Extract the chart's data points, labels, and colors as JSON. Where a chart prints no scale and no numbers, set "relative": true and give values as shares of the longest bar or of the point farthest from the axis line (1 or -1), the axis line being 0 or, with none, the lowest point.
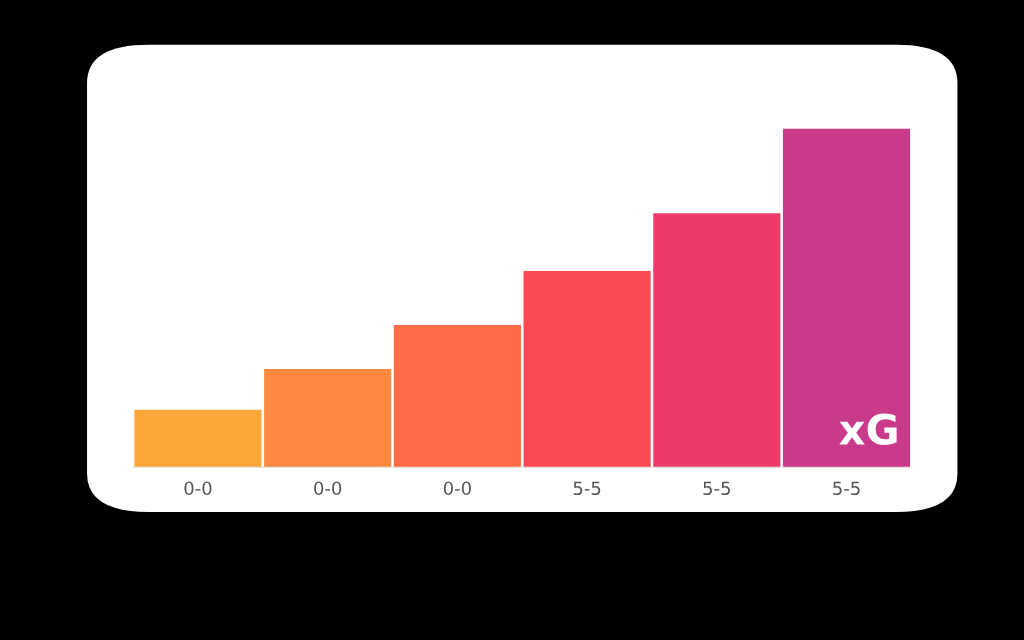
{
  "chart_data": {
    "type": "bar",
    "relative": true,
    "categories": [
      "0-0",
      "0-0",
      "0-0",
      "5-5",
      "5-5",
      "5-5"
    ],
    "values": [
      0.17,
      0.29,
      0.42,
      0.58,
      0.75,
      1
    ],
    "colors": [
      "#fda63a",
      "#fd8a3e",
      "#fd6c46",
      "#fb4a56",
      "#ef3a6c",
      "#c93a8a"
    ],
    "annotations": [
      "xG"
    ]
  }
}
